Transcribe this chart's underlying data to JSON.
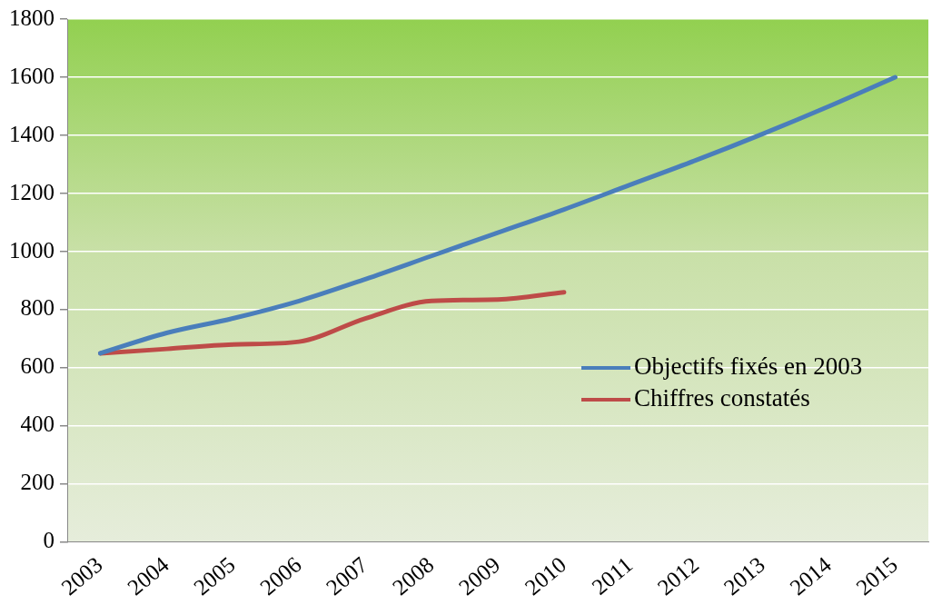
{
  "chart_data": {
    "type": "line",
    "categories": [
      "2003",
      "2004",
      "2005",
      "2006",
      "2007",
      "2008",
      "2009",
      "2010",
      "2011",
      "2012",
      "2013",
      "2014",
      "2015"
    ],
    "series": [
      {
        "name": "Objectifs fixés en 2003",
        "color": "#4a7ebb",
        "values": [
          650,
          720,
          770,
          830,
          905,
          985,
          1065,
          1145,
          1230,
          1315,
          1405,
          1500,
          1600
        ]
      },
      {
        "name": "Chiffres constatés",
        "color": "#be4b48",
        "values": [
          650,
          665,
          680,
          690,
          770,
          830,
          835,
          860,
          null,
          null,
          null,
          null,
          null
        ]
      }
    ],
    "ylim": [
      0,
      1800
    ],
    "yticks": [
      0,
      200,
      400,
      600,
      800,
      1000,
      1200,
      1400,
      1600,
      1800
    ],
    "grid": "y",
    "legend": "bottom right",
    "marker": "none",
    "line_style": "solid"
  }
}
